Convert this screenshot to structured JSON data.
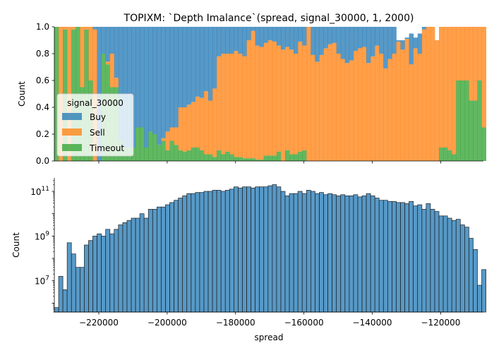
{
  "chart_data": [
    {
      "type": "bar",
      "stacked": true,
      "normalized": true,
      "title": "TOPIXM: `Depth Imalance`(spread, signal_30000, 1, 2000)",
      "ylabel": "Count",
      "ylim": [
        0,
        1
      ],
      "yticks": [
        "0.0",
        "0.2",
        "0.4",
        "0.6",
        "0.8",
        "1.0"
      ],
      "xlim": [
        -233000,
        -107500
      ],
      "legend": {
        "title": "signal_30000",
        "placement": "center-left",
        "entries": [
          "Buy",
          "Sell",
          "Timeout"
        ]
      },
      "colors": {
        "Buy": "#1f77b4",
        "Sell": "#ff7f0e",
        "Timeout": "#2ca02c"
      },
      "bin_start": -233000,
      "bin_width": 1250,
      "series": [
        {
          "name": "Timeout",
          "values": [
            1.0,
            0.0,
            0.98,
            0.0,
            0.98,
            1.0,
            0.55,
            0.98,
            0.6,
            0.0,
            0.0,
            0.8,
            0.72,
            0.55,
            0.55,
            0.15,
            0.1,
            0.1,
            0.1,
            0.25,
            0.25,
            0.1,
            0.22,
            0.2,
            0.12,
            0.15,
            0.08,
            0.15,
            0.12,
            0.08,
            0.07,
            0.08,
            0.1,
            0.1,
            0.08,
            0.05,
            0.05,
            0.03,
            0.08,
            0.05,
            0.07,
            0.05,
            0.03,
            0.03,
            0.02,
            0.02,
            0.02,
            0.01,
            0.01,
            0.04,
            0.04,
            0.04,
            0.07,
            0.0,
            0.08,
            0.05,
            0.05,
            0.07,
            0.08,
            0.0,
            0.0,
            0.0,
            0.0,
            0.0,
            0.0,
            0.0,
            0.0,
            0.0,
            0.0,
            0.0,
            0.0,
            0.0,
            0.0,
            0.0,
            0.0,
            0.0,
            0.0,
            0.0,
            0.0,
            0.0,
            0.0,
            0.0,
            0.0,
            0.0,
            0.0,
            0.0,
            0.0,
            0.0,
            0.0,
            0.0,
            0.1,
            0.1,
            0.08,
            0.05,
            0.6,
            0.6,
            0.6,
            0.45,
            0.45,
            0.6,
            0.25
          ]
        },
        {
          "name": "Sell",
          "values": [
            0.0,
            1.0,
            0.02,
            1.0,
            0.02,
            0.0,
            0.45,
            0.02,
            0.4,
            0.98,
            0.0,
            0.0,
            0.02,
            0.25,
            0.07,
            0.0,
            0.0,
            0.0,
            0.0,
            0.0,
            0.0,
            0.0,
            0.0,
            0.0,
            0.0,
            0.02,
            0.14,
            0.1,
            0.13,
            0.32,
            0.33,
            0.34,
            0.34,
            0.38,
            0.39,
            0.47,
            0.4,
            0.51,
            0.7,
            0.75,
            0.73,
            0.75,
            0.79,
            0.77,
            0.76,
            0.88,
            0.95,
            0.85,
            0.84,
            0.84,
            0.86,
            0.85,
            0.79,
            0.83,
            0.77,
            0.78,
            0.75,
            0.82,
            0.78,
            1.0,
            0.79,
            0.74,
            0.79,
            0.84,
            0.87,
            0.88,
            0.8,
            0.76,
            0.73,
            0.75,
            0.82,
            0.84,
            0.85,
            0.73,
            0.78,
            0.86,
            0.8,
            0.69,
            0.76,
            0.8,
            0.89,
            0.83,
            0.91,
            0.72,
            0.84,
            0.8,
            0.98,
            1.0,
            1.0,
            0.9,
            0.9,
            0.9,
            0.92,
            0.95,
            0.4,
            0.4,
            0.4,
            0.55,
            0.55,
            0.4,
            0.75
          ]
        },
        {
          "name": "Buy",
          "values": [
            0.0,
            0.0,
            0.0,
            0.0,
            0.0,
            0.0,
            0.0,
            0.0,
            0.0,
            0.02,
            1.0,
            0.2,
            0.26,
            0.2,
            0.38,
            0.85,
            0.9,
            0.9,
            0.9,
            0.75,
            0.75,
            0.9,
            0.78,
            0.8,
            0.88,
            0.83,
            0.78,
            0.75,
            0.75,
            0.6,
            0.6,
            0.58,
            0.56,
            0.52,
            0.53,
            0.48,
            0.55,
            0.46,
            0.22,
            0.2,
            0.2,
            0.2,
            0.18,
            0.2,
            0.22,
            0.1,
            0.03,
            0.14,
            0.15,
            0.12,
            0.1,
            0.11,
            0.14,
            0.17,
            0.15,
            0.17,
            0.2,
            0.11,
            0.14,
            0.0,
            0.21,
            0.26,
            0.21,
            0.16,
            0.13,
            0.12,
            0.2,
            0.24,
            0.27,
            0.25,
            0.18,
            0.16,
            0.15,
            0.27,
            0.22,
            0.14,
            0.2,
            0.31,
            0.24,
            0.2,
            0.01,
            0.07,
            0.01,
            0.23,
            0.08,
            0.15,
            0.02,
            0.0,
            0.0,
            0.0,
            0.0,
            0.0,
            0.0,
            0.0,
            0.0,
            0.0,
            0.0,
            0.0,
            0.0,
            0.0,
            0.0
          ]
        }
      ]
    },
    {
      "type": "bar",
      "xlabel": "spread",
      "ylabel": "Count",
      "yscale": "log",
      "ylim_exp": [
        5.6,
        11.6
      ],
      "yticks_exp": [
        7,
        9,
        11
      ],
      "xlim": [
        -233000,
        -107500
      ],
      "xticks": [
        -220000,
        -200000,
        -180000,
        -160000,
        -140000,
        -120000
      ],
      "xtick_labels": [
        "−220000",
        "−200000",
        "−180000",
        "−160000",
        "−140000",
        "−120000"
      ],
      "color": "#1f77b4",
      "bin_start": -233000,
      "bin_width": 1250,
      "log10_counts": [
        5.8,
        7.2,
        6.6,
        8.7,
        8.2,
        7.6,
        7.6,
        8.6,
        8.8,
        9.0,
        9.1,
        9.0,
        9.3,
        9.1,
        9.3,
        9.5,
        9.6,
        9.7,
        9.8,
        9.8,
        10.0,
        9.8,
        10.2,
        10.2,
        10.3,
        10.3,
        10.4,
        10.5,
        10.6,
        10.7,
        10.8,
        10.9,
        10.9,
        10.95,
        10.95,
        11.0,
        11.0,
        11.05,
        11.05,
        11.0,
        11.05,
        11.1,
        11.2,
        11.15,
        11.2,
        11.2,
        11.15,
        11.2,
        11.2,
        11.2,
        11.25,
        11.3,
        11.2,
        11.0,
        10.8,
        10.9,
        10.9,
        11.0,
        10.9,
        11.05,
        11.0,
        10.9,
        10.95,
        10.85,
        10.9,
        10.85,
        10.8,
        10.85,
        10.8,
        10.8,
        10.85,
        10.75,
        10.8,
        10.9,
        10.8,
        10.7,
        10.6,
        10.6,
        10.55,
        10.55,
        10.5,
        10.5,
        10.45,
        10.55,
        10.35,
        10.4,
        10.2,
        10.45,
        10.2,
        10.1,
        9.9,
        9.9,
        9.8,
        9.7,
        9.75,
        9.5,
        9.4,
        8.9,
        8.4,
        6.8,
        7.5
      ]
    }
  ]
}
